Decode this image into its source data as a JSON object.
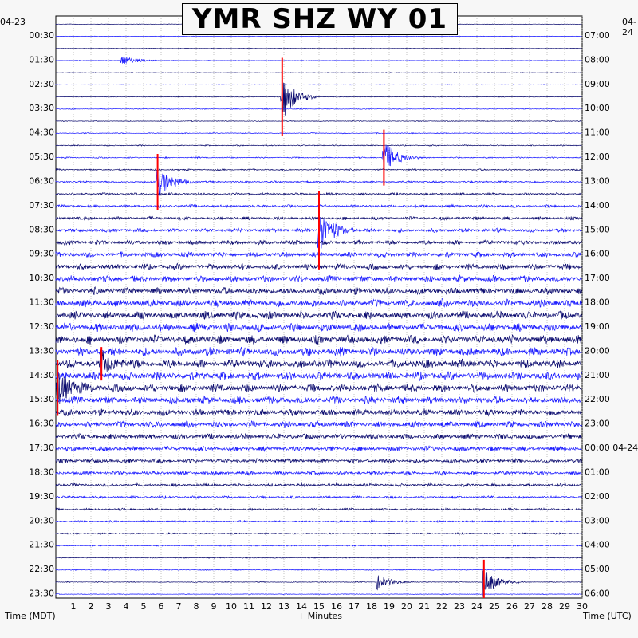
{
  "title": "YMR SHZ WY 01",
  "date_left": "04-23",
  "date_right": "04-24",
  "colors": {
    "trace_dark": "#0a0a6e",
    "trace_bright": "#1a1aff",
    "clip": "#ff0000",
    "background": "#ffffff"
  },
  "chart_data": {
    "type": "helicorder",
    "title": "YMR SHZ WY 01",
    "xlabel": "+ Minutes",
    "ylabel_left": "Time (MDT)",
    "ylabel_right": "Time (UTC)",
    "xlim": [
      0,
      30
    ],
    "x_ticks": [
      1,
      2,
      3,
      4,
      5,
      6,
      7,
      8,
      9,
      10,
      11,
      12,
      13,
      14,
      15,
      16,
      17,
      18,
      19,
      20,
      21,
      22,
      23,
      24,
      25,
      26,
      27,
      28,
      29,
      30
    ],
    "rows_per_hour": 2,
    "left_time_labels": [
      "00:30",
      "01:30",
      "02:30",
      "03:30",
      "04:30",
      "05:30",
      "06:30",
      "07:30",
      "08:30",
      "09:30",
      "10:30",
      "11:30",
      "12:30",
      "13:30",
      "14:30",
      "15:30",
      "16:30",
      "17:30",
      "18:30",
      "19:30",
      "20:30",
      "21:30",
      "22:30",
      "23:30"
    ],
    "right_time_labels": [
      "07:00",
      "08:00",
      "09:00",
      "10:00",
      "11:00",
      "12:00",
      "13:00",
      "14:00",
      "15:00",
      "16:00",
      "17:00",
      "18:00",
      "19:00",
      "20:00",
      "21:00",
      "22:00",
      "23:00",
      "00:00 04-24",
      "01:00",
      "02:00",
      "03:00",
      "04:00",
      "05:00",
      "06:00"
    ],
    "events": [
      {
        "row": 3,
        "minute": 3.8,
        "amplitude": 0.8
      },
      {
        "row": 6,
        "minute": 12.9,
        "amplitude": 3.5,
        "clipped": true
      },
      {
        "row": 11,
        "minute": 18.7,
        "amplitude": 2.5,
        "clipped": true
      },
      {
        "row": 13,
        "minute": 5.8,
        "amplitude": 2.5,
        "clipped": true
      },
      {
        "row": 17,
        "minute": 15.0,
        "amplitude": 3.5,
        "clipped": true
      },
      {
        "row": 28,
        "minute": 2.6,
        "amplitude": 1.5,
        "clipped": true
      },
      {
        "row": 30,
        "minute": 0.1,
        "amplitude": 2.5,
        "clipped": true
      },
      {
        "row": 46,
        "minute": 24.4,
        "amplitude": 2.0,
        "clipped": true
      },
      {
        "row": 46,
        "minute": 18.4,
        "amplitude": 1.0
      }
    ],
    "grid": true
  }
}
